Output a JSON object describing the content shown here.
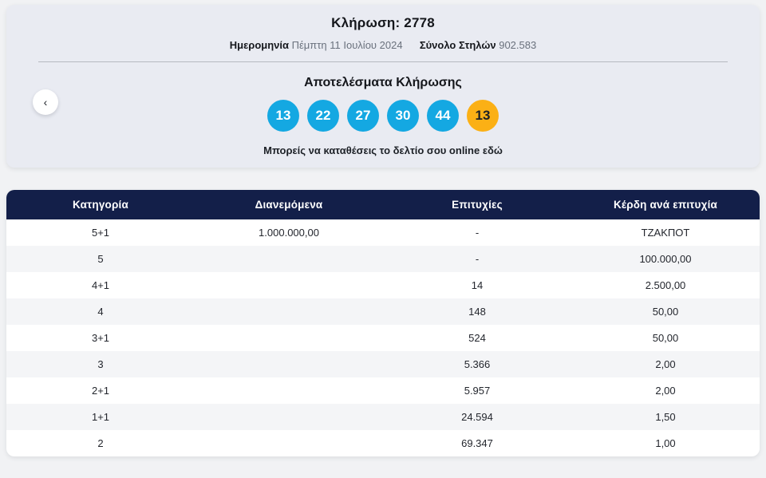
{
  "colors": {
    "accent_blue": "#14a8e2",
    "joker_orange": "#fbb015",
    "header_navy": "#131f49"
  },
  "draw_header": {
    "title": "Κλήρωση: 2778",
    "date_label": "Ημερομηνία",
    "date_value": "Πέμπτη 11 Ιουλίου 2024",
    "columns_label": "Σύνολο Στηλών",
    "columns_value": "902.583",
    "results_title": "Αποτελέσματα Κλήρωσης",
    "numbers": [
      {
        "value": "13",
        "type": "main"
      },
      {
        "value": "22",
        "type": "main"
      },
      {
        "value": "27",
        "type": "main"
      },
      {
        "value": "30",
        "type": "main"
      },
      {
        "value": "44",
        "type": "main"
      },
      {
        "value": "13",
        "type": "joker"
      }
    ],
    "note_text": "Μπορείς να καταθέσεις το δελτίο σου online",
    "note_link": "εδώ",
    "prev_button_icon": "‹"
  },
  "table": {
    "columns": [
      "Κατηγορία",
      "Διανεμόμενα",
      "Επιτυχίες",
      "Κέρδη ανά επιτυχία"
    ],
    "rows": [
      {
        "category": "5+1",
        "distributed": "1.000.000,00",
        "winners": "-",
        "prize": "ΤΖΑΚΠΟΤ"
      },
      {
        "category": "5",
        "distributed": "",
        "winners": "-",
        "prize": "100.000,00"
      },
      {
        "category": "4+1",
        "distributed": "",
        "winners": "14",
        "prize": "2.500,00"
      },
      {
        "category": "4",
        "distributed": "",
        "winners": "148",
        "prize": "50,00"
      },
      {
        "category": "3+1",
        "distributed": "",
        "winners": "524",
        "prize": "50,00"
      },
      {
        "category": "3",
        "distributed": "",
        "winners": "5.366",
        "prize": "2,00"
      },
      {
        "category": "2+1",
        "distributed": "",
        "winners": "5.957",
        "prize": "2,00"
      },
      {
        "category": "1+1",
        "distributed": "",
        "winners": "24.594",
        "prize": "1,50"
      },
      {
        "category": "2",
        "distributed": "",
        "winners": "69.347",
        "prize": "1,00"
      }
    ]
  }
}
